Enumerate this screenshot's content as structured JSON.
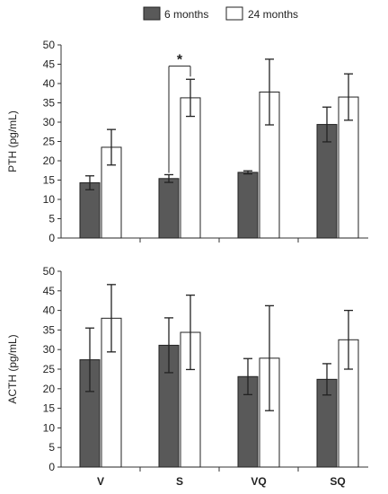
{
  "legend": {
    "series_a": "6 months",
    "series_b": "24 months"
  },
  "colors": {
    "series_a": "#595959",
    "series_b": "#ffffff",
    "stroke": "#222222"
  },
  "chart_data": [
    {
      "type": "bar",
      "title": "",
      "xlabel": "",
      "ylabel": "PTH (pg/mL)",
      "ylim": [
        0,
        50
      ],
      "yticks": [
        0,
        5,
        10,
        15,
        20,
        25,
        30,
        35,
        40,
        45,
        50
      ],
      "categories": [
        "V",
        "S",
        "VQ",
        "SQ"
      ],
      "show_category_labels": false,
      "series": [
        {
          "name": "6 months",
          "values": [
            14.3,
            15.4,
            17.0,
            29.4
          ],
          "errors": [
            1.8,
            1.0,
            0.4,
            4.5
          ]
        },
        {
          "name": "24 months",
          "values": [
            23.5,
            36.3,
            37.8,
            36.5
          ],
          "errors": [
            4.6,
            4.8,
            8.5,
            6.0
          ]
        }
      ],
      "annotations": [
        {
          "text": "*",
          "category": "S"
        }
      ]
    },
    {
      "type": "bar",
      "title": "",
      "xlabel": "",
      "ylabel": "ACTH (pg/mL)",
      "ylim": [
        0,
        50
      ],
      "yticks": [
        0,
        5,
        10,
        15,
        20,
        25,
        30,
        35,
        40,
        45,
        50
      ],
      "categories": [
        "V",
        "S",
        "VQ",
        "SQ"
      ],
      "show_category_labels": true,
      "series": [
        {
          "name": "6 months",
          "values": [
            27.4,
            31.1,
            23.1,
            22.4
          ],
          "errors": [
            8.1,
            7.0,
            4.6,
            4.0
          ]
        },
        {
          "name": "24 months",
          "values": [
            38.0,
            34.4,
            27.8,
            32.5
          ],
          "errors": [
            8.6,
            9.5,
            13.4,
            7.5
          ]
        }
      ],
      "annotations": []
    }
  ]
}
